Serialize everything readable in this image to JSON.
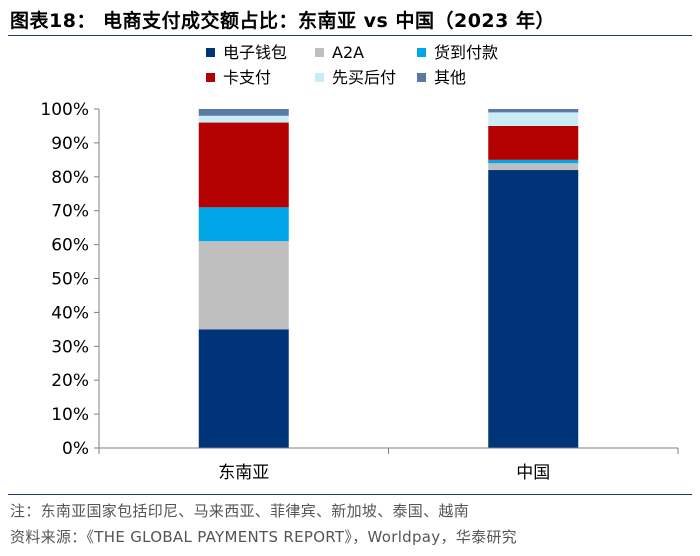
{
  "header": {
    "title": "图表18：  电商支付成交额占比：东南亚 vs 中国（2023 年）"
  },
  "notes": {
    "note": "注：东南亚国家包括印尼、马来西亚、菲律宾、新加坡、泰国、越南",
    "source": "资料来源：《THE GLOBAL PAYMENTS REPORT》，Worldpay，华泰研究"
  },
  "colors": {
    "电子钱包": "#003478",
    "A2A": "#bfbfbf",
    "货到付款": "#00a6e8",
    "卡支付": "#b30000",
    "先买后付": "#c9ecf7",
    "其他": "#5a7aa5"
  },
  "chart_data": {
    "type": "bar",
    "stacked": true,
    "title": "电商支付成交额占比：东南亚 vs 中国（2023 年）",
    "xlabel": "",
    "ylabel": "",
    "categories": [
      "东南亚",
      "中国"
    ],
    "ylim": [
      0,
      100
    ],
    "yticks": [
      "0%",
      "10%",
      "20%",
      "30%",
      "40%",
      "50%",
      "60%",
      "70%",
      "80%",
      "90%",
      "100%"
    ],
    "legend_position": "top",
    "series": [
      {
        "name": "电子钱包",
        "values": [
          35,
          82
        ]
      },
      {
        "name": "A2A",
        "values": [
          26,
          2
        ]
      },
      {
        "name": "货到付款",
        "values": [
          10,
          1
        ]
      },
      {
        "name": "卡支付",
        "values": [
          25,
          10
        ]
      },
      {
        "name": "先买后付",
        "values": [
          2,
          4
        ]
      },
      {
        "name": "其他",
        "values": [
          2,
          1
        ]
      }
    ]
  }
}
